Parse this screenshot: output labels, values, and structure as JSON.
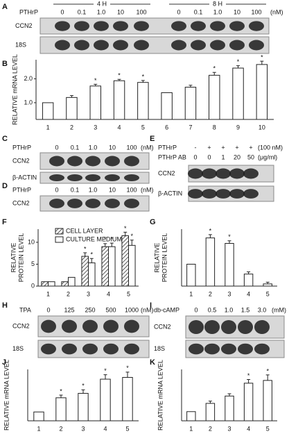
{
  "blots": [
    {
      "label": "A",
      "groups": [
        "4 H",
        "8 H"
      ],
      "rows": [
        {
          "name": "PTHrP",
          "values": [
            "0",
            "0.1",
            "1.0",
            "10",
            "100",
            "0",
            "0.1",
            "1.0",
            "10",
            "100"
          ],
          "unit": "(nM)"
        }
      ],
      "bands": [
        "CCN2",
        "18S"
      ]
    },
    {
      "label": "C",
      "rows": [
        {
          "name": "PTHrP",
          "values": [
            "0",
            "0.1",
            "1.0",
            "10",
            "100"
          ],
          "unit": "(nM)"
        }
      ],
      "bands": [
        "CCN2",
        "β-ACTIN"
      ]
    },
    {
      "label": "D",
      "rows": [
        {
          "name": "PTHrP",
          "values": [
            "0",
            "0.1",
            "1.0",
            "10",
            "100"
          ],
          "unit": "(nM)"
        }
      ],
      "bands": [
        "CCN2"
      ]
    },
    {
      "label": "E",
      "rows": [
        {
          "name": "PTHrP",
          "values": [
            "-",
            "+",
            "+",
            "+",
            "+"
          ],
          "unit": "(100 nM)"
        },
        {
          "name": "PTHrP AB",
          "values": [
            "0",
            "0",
            "1",
            "20",
            "50"
          ],
          "unit": "(μg/ml)"
        }
      ],
      "bands": [
        "CCN2",
        "β-ACTIN"
      ]
    },
    {
      "label": "H",
      "rows": [
        {
          "name": "TPA",
          "values": [
            "0",
            "125",
            "250",
            "500",
            "1000"
          ],
          "unit": "(nM)"
        }
      ],
      "bands": [
        "CCN2",
        "18S"
      ]
    },
    {
      "label": "I",
      "rows": [
        {
          "name": "db-cAMP",
          "values": [
            "0",
            "0.5",
            "1.0",
            "1.5",
            "3.0"
          ],
          "unit": "(mM)"
        }
      ],
      "bands": [
        "CCN2",
        "18S"
      ]
    }
  ],
  "chart_data": [
    {
      "label": "B",
      "type": "bar",
      "ylabel": [
        "RELATIVE mRNA LEVEL"
      ],
      "categories": [
        "1",
        "2",
        "3",
        "4",
        "5",
        "6",
        "7",
        "8",
        "9",
        "10"
      ],
      "values": [
        1.0,
        1.22,
        1.7,
        1.92,
        1.85,
        1.42,
        1.65,
        2.15,
        2.45,
        2.6
      ],
      "errors": [
        0,
        0.08,
        0.07,
        0.06,
        0.08,
        0,
        0.08,
        0.12,
        0.1,
        0.14
      ],
      "markers": [
        null,
        null,
        "*",
        "*",
        "*",
        null,
        null,
        "*",
        "*",
        "*"
      ],
      "color": "#ffffff",
      "ylim": [
        0.3,
        2.8
      ],
      "yticks": [
        {
          "value": 1,
          "label": "1.0"
        },
        {
          "value": 2,
          "label": "2.0"
        }
      ]
    },
    {
      "label": "F",
      "type": "bar",
      "ylabel": [
        "RELATIVE",
        "PROTEIN LEVEL"
      ],
      "categories": [
        "1",
        "2",
        "3",
        "4",
        "5"
      ],
      "legend": "top-left",
      "series": [
        {
          "name": "CELL LAYER",
          "color": "#ffffff",
          "pattern": "hatch",
          "values": [
            1.0,
            1.0,
            6.8,
            9.0,
            11.5
          ],
          "errors": [
            0,
            0,
            0.8,
            0.7,
            0.8
          ],
          "markers": [
            null,
            null,
            "*",
            "*",
            "*"
          ]
        },
        {
          "name": "CULTURE MEDIUM",
          "color": "#ffffff",
          "values": [
            1.0,
            2.0,
            5.3,
            9.0,
            9.3
          ],
          "errors": [
            0,
            0,
            1.0,
            0.8,
            1.2
          ],
          "markers": [
            null,
            null,
            "*",
            "*",
            "*"
          ]
        }
      ],
      "ylim": [
        0,
        13
      ],
      "yticks": [
        0,
        5,
        10
      ]
    },
    {
      "label": "G",
      "type": "bar",
      "ylabel": [
        "RELATIVE",
        "PROTEIN LEVEL"
      ],
      "categories": [
        "1",
        "2",
        "3",
        "4",
        "5"
      ],
      "values": [
        1.0,
        2.2,
        1.95,
        0.55,
        0.1
      ],
      "errors": [
        0,
        0.15,
        0.12,
        0.1,
        0.08
      ],
      "markers": [
        null,
        "*",
        "*",
        null,
        null
      ],
      "color": "#ffffff",
      "ylim": [
        0,
        2.6
      ]
    },
    {
      "label": "J",
      "type": "bar",
      "ylabel": [
        "RELATIVE mRNA LEVEL"
      ],
      "categories": [
        "1",
        "2",
        "3",
        "4",
        "5"
      ],
      "values": [
        1.0,
        2.6,
        3.1,
        4.7,
        4.9
      ],
      "errors": [
        0,
        0.3,
        0.4,
        0.5,
        0.6
      ],
      "markers": [
        null,
        "*",
        "*",
        "*",
        "*"
      ],
      "color": "#ffffff",
      "ylim": [
        0,
        5.8
      ]
    },
    {
      "label": "K",
      "type": "bar",
      "ylabel": [
        "RELATIVE mRNA LEVEL"
      ],
      "categories": [
        "1",
        "2",
        "3",
        "4",
        "5"
      ],
      "values": [
        1.0,
        1.9,
        2.7,
        4.1,
        4.4
      ],
      "errors": [
        0,
        0.25,
        0.25,
        0.4,
        0.6
      ],
      "markers": [
        null,
        null,
        null,
        "*",
        "*"
      ],
      "color": "#ffffff",
      "ylim": [
        0,
        5.6
      ]
    }
  ]
}
